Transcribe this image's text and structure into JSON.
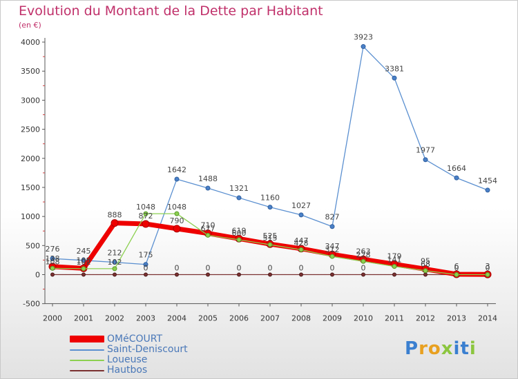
{
  "header": {
    "title": "Evolution du Montant de la Dette par Habitant",
    "subtitle": "(en €)"
  },
  "logo": {
    "text": "Proxiti",
    "letters": [
      {
        "ch": "P",
        "color": "#3a7fd0"
      },
      {
        "ch": "r",
        "color": "#e8a020"
      },
      {
        "ch": "o",
        "color": "#e8a020"
      },
      {
        "ch": "x",
        "color": "#8cc63f"
      },
      {
        "ch": "i",
        "color": "#3a7fd0"
      },
      {
        "ch": "t",
        "color": "#3a7fd0"
      },
      {
        "ch": "i",
        "color": "#8cc63f"
      }
    ]
  },
  "chart_data": {
    "type": "line",
    "title": "Evolution du Montant de la Dette par Habitant",
    "subtitle": "(en €)",
    "xlabel": "",
    "ylabel": "",
    "x": [
      "2000",
      "2001",
      "2002",
      "2003",
      "2004",
      "2005",
      "2006",
      "2007",
      "2008",
      "2009",
      "2010",
      "2011",
      "2012",
      "2013",
      "2014"
    ],
    "ylim": [
      -500,
      4000
    ],
    "yticks": [
      -500,
      0,
      500,
      1000,
      1500,
      2000,
      2500,
      3000,
      3500,
      4000
    ],
    "grid": false,
    "legend_position": "bottom-left",
    "series": [
      {
        "name": "OMéCOURT",
        "color": "#ee0000",
        "values": [
          138,
          108,
          888,
          872,
          790,
          710,
          619,
          525,
          447,
          347,
          263,
          179,
          95,
          6,
          3
        ],
        "labels": [
          "138",
          "108",
          "888",
          "872",
          "790",
          "710",
          "619",
          "525",
          "447",
          "347",
          "263",
          "179",
          "95",
          "6",
          "3"
        ]
      },
      {
        "name": "Saint-Deniscourt",
        "color": "#5a8fd0",
        "values": [
          276,
          245,
          212,
          175,
          1642,
          1488,
          1321,
          1160,
          1027,
          827,
          3923,
          3381,
          1977,
          1664,
          1454
        ],
        "labels": [
          "276",
          "245",
          "212",
          "175",
          "1642",
          "1488",
          "1321",
          "1160",
          "1027",
          "827",
          "3923",
          "3381",
          "1977",
          "1664",
          "1454"
        ]
      },
      {
        "name": "Loueuse",
        "color": "#8cd050",
        "values": [
          108,
          102,
          102,
          1048,
          1048,
          677,
          600,
          515,
          428,
          312,
          228,
          141,
          68,
          0,
          0
        ],
        "labels": [
          "108",
          "102",
          "102",
          "1048",
          "1048",
          "677",
          "600",
          "515",
          "428",
          "312",
          "228",
          "141",
          "68",
          "0",
          "0"
        ]
      },
      {
        "name": "Hautbos",
        "color": "#7a3030",
        "values": [
          0,
          0,
          0,
          0,
          0,
          0,
          0,
          0,
          0,
          0,
          0,
          0,
          0,
          0,
          0
        ],
        "labels": [
          "",
          "",
          "",
          "0",
          "0",
          "0",
          "0",
          "0",
          "0",
          "0",
          "0",
          "",
          "",
          "",
          ""
        ]
      }
    ]
  }
}
